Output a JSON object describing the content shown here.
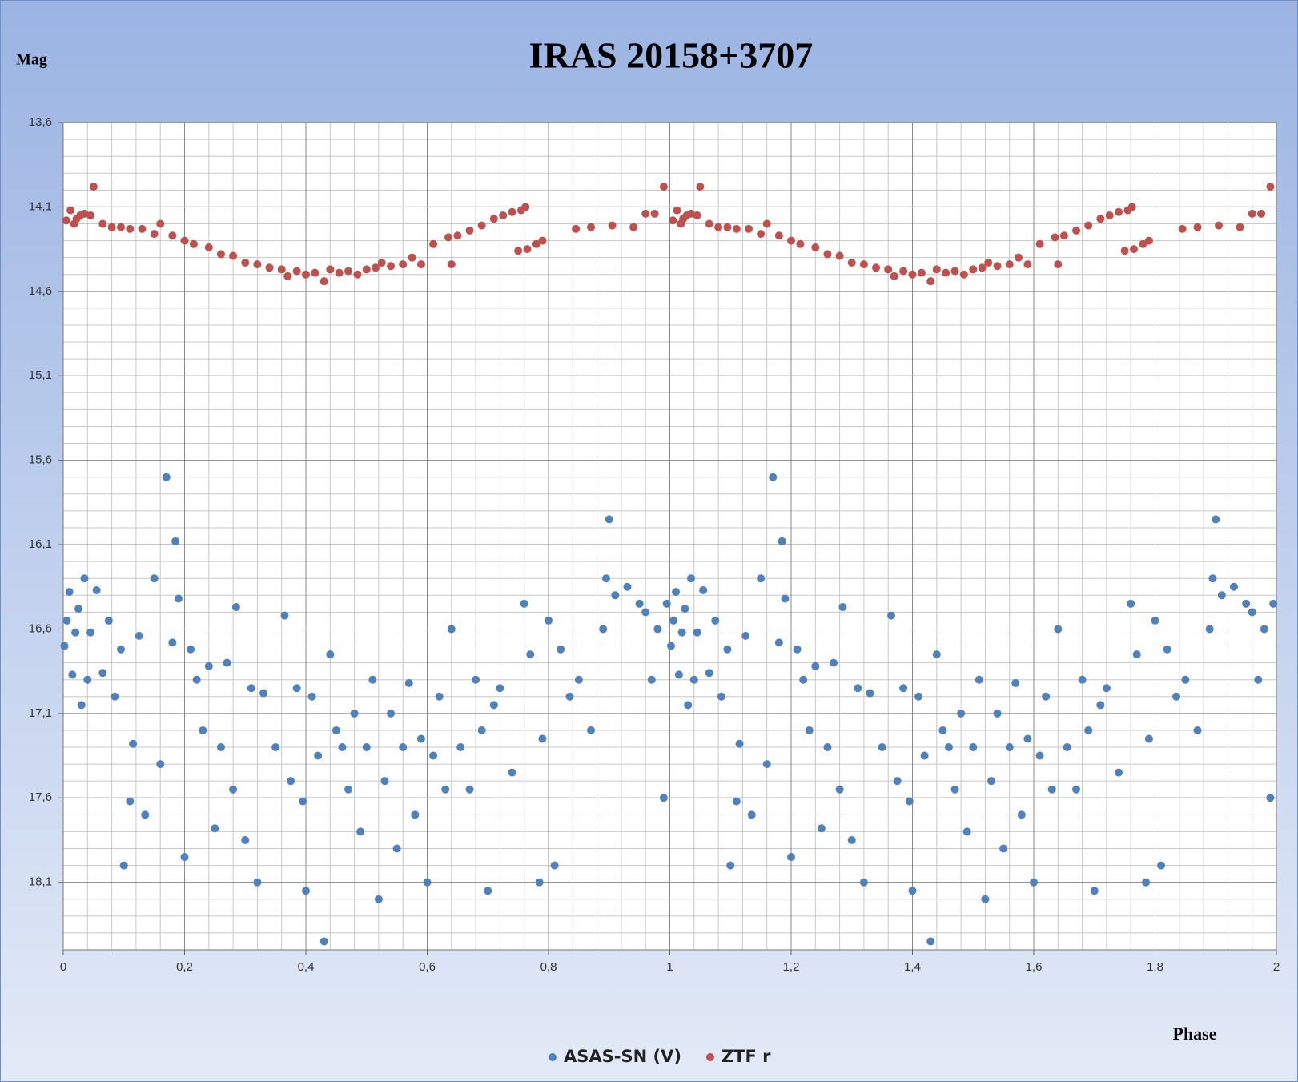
{
  "chart_data": {
    "type": "scatter",
    "title": "IRAS 20158+3707",
    "ylabel": "Mag",
    "xlabel": "Phase",
    "xlim": [
      0,
      2
    ],
    "xticks": [
      0,
      {
        "value": 0.2,
        "label": "0,2"
      },
      {
        "value": 0.4,
        "label": "0,4"
      },
      {
        "value": 0.6,
        "label": "0,6"
      },
      {
        "value": 0.8,
        "label": "0,8"
      },
      1,
      {
        "value": 1.2,
        "label": "1,2"
      },
      {
        "value": 1.4,
        "label": "1,4"
      },
      {
        "value": 1.6,
        "label": "1,6"
      },
      {
        "value": 1.8,
        "label": "1,8"
      },
      2
    ],
    "ylim": [
      13.6,
      18.5
    ],
    "y_reversed": true,
    "yticks": [
      {
        "value": 13.6,
        "label": "13,6"
      },
      {
        "value": 14.1,
        "label": "14,1"
      },
      {
        "value": 14.6,
        "label": "14,6"
      },
      {
        "value": 15.1,
        "label": "15,1"
      },
      {
        "value": 15.6,
        "label": "15,6"
      },
      {
        "value": 16.1,
        "label": "16,1"
      },
      {
        "value": 16.6,
        "label": "16,6"
      },
      {
        "value": 17.1,
        "label": "17,1"
      },
      {
        "value": 17.6,
        "label": "17,6"
      },
      {
        "value": 18.1,
        "label": "18,1"
      }
    ],
    "grid": true,
    "legend": "bottom",
    "series": [
      {
        "name": "ASAS-SN (V)",
        "color": "#4f81bd",
        "x": [
          0.002,
          0.006,
          0.01,
          0.015,
          0.02,
          0.025,
          0.03,
          0.035,
          0.04,
          0.045,
          0.055,
          0.065,
          0.075,
          0.085,
          0.095,
          0.1,
          0.11,
          0.115,
          0.125,
          0.135,
          0.15,
          0.16,
          0.17,
          0.18,
          0.185,
          0.19,
          0.2,
          0.21,
          0.22,
          0.23,
          0.24,
          0.25,
          0.26,
          0.27,
          0.28,
          0.285,
          0.3,
          0.31,
          0.32,
          0.33,
          0.35,
          0.365,
          0.375,
          0.385,
          0.395,
          0.4,
          0.41,
          0.42,
          0.43,
          0.44,
          0.45,
          0.46,
          0.47,
          0.48,
          0.49,
          0.5,
          0.51,
          0.52,
          0.53,
          0.54,
          0.55,
          0.56,
          0.57,
          0.58,
          0.59,
          0.6,
          0.61,
          0.62,
          0.63,
          0.64,
          0.655,
          0.67,
          0.68,
          0.69,
          0.7,
          0.71,
          0.72,
          0.74,
          0.76,
          0.77,
          0.785,
          0.79,
          0.8,
          0.81,
          0.82,
          0.835,
          0.85,
          0.87,
          0.89,
          0.895,
          0.9,
          0.91,
          0.93,
          0.95,
          0.96,
          0.97,
          0.98,
          0.99,
          0.995,
          1.002,
          1.006,
          1.01,
          1.015,
          1.02,
          1.025,
          1.03,
          1.035,
          1.04,
          1.045,
          1.055,
          1.065,
          1.075,
          1.085,
          1.095,
          1.1,
          1.11,
          1.115,
          1.125,
          1.135,
          1.15,
          1.16,
          1.17,
          1.18,
          1.185,
          1.19,
          1.2,
          1.21,
          1.22,
          1.23,
          1.24,
          1.25,
          1.26,
          1.27,
          1.28,
          1.285,
          1.3,
          1.31,
          1.32,
          1.33,
          1.35,
          1.365,
          1.375,
          1.385,
          1.395,
          1.4,
          1.41,
          1.42,
          1.43,
          1.44,
          1.45,
          1.46,
          1.47,
          1.48,
          1.49,
          1.5,
          1.51,
          1.52,
          1.53,
          1.54,
          1.55,
          1.56,
          1.57,
          1.58,
          1.59,
          1.6,
          1.61,
          1.62,
          1.63,
          1.64,
          1.655,
          1.67,
          1.68,
          1.69,
          1.7,
          1.71,
          1.72,
          1.74,
          1.76,
          1.77,
          1.785,
          1.79,
          1.8,
          1.81,
          1.82,
          1.835,
          1.85,
          1.87,
          1.89,
          1.895,
          1.9,
          1.91,
          1.93,
          1.95,
          1.96,
          1.97,
          1.98,
          1.99,
          1.995
        ],
        "values": [
          16.7,
          16.55,
          16.38,
          16.87,
          16.62,
          16.48,
          17.05,
          16.3,
          16.9,
          16.62,
          16.37,
          16.86,
          16.55,
          17.0,
          16.72,
          18.0,
          17.62,
          17.28,
          16.64,
          17.7,
          16.3,
          17.4,
          15.7,
          16.68,
          16.08,
          16.42,
          17.95,
          16.72,
          16.9,
          17.2,
          16.82,
          17.78,
          17.3,
          16.8,
          17.55,
          16.47,
          17.85,
          16.95,
          18.1,
          16.98,
          17.3,
          16.52,
          17.5,
          16.95,
          17.62,
          18.15,
          17.0,
          17.35,
          18.45,
          16.75,
          17.2,
          17.3,
          17.55,
          17.1,
          17.8,
          17.3,
          16.9,
          18.2,
          17.5,
          17.1,
          17.9,
          17.3,
          16.92,
          17.7,
          17.25,
          18.1,
          17.35,
          17.0,
          17.55,
          16.6,
          17.3,
          17.55,
          16.9,
          17.2,
          18.15,
          17.05,
          16.95,
          17.45,
          16.45,
          16.75,
          18.1,
          17.25,
          16.55,
          18.0,
          16.72,
          17.0,
          16.9,
          17.2,
          16.6,
          16.3,
          15.95,
          16.4,
          16.35,
          16.45,
          16.5,
          16.9,
          16.6,
          17.6,
          16.45,
          16.7,
          16.55,
          16.38,
          16.87,
          16.62,
          16.48,
          17.05,
          16.3,
          16.9,
          16.62,
          16.37,
          16.86,
          16.55,
          17.0,
          16.72,
          18.0,
          17.62,
          17.28,
          16.64,
          17.7,
          16.3,
          17.4,
          15.7,
          16.68,
          16.08,
          16.42,
          17.95,
          16.72,
          16.9,
          17.2,
          16.82,
          17.78,
          17.3,
          16.8,
          17.55,
          16.47,
          17.85,
          16.95,
          18.1,
          16.98,
          17.3,
          16.52,
          17.5,
          16.95,
          17.62,
          18.15,
          17.0,
          17.35,
          18.45,
          16.75,
          17.2,
          17.3,
          17.55,
          17.1,
          17.8,
          17.3,
          16.9,
          18.2,
          17.5,
          17.1,
          17.9,
          17.3,
          16.92,
          17.7,
          17.25,
          18.1,
          17.35,
          17.0,
          17.55,
          16.6,
          17.3,
          17.55,
          16.9,
          17.2,
          18.15,
          17.05,
          16.95,
          17.45,
          16.45,
          16.75,
          18.1,
          17.25,
          16.55,
          18.0,
          16.72,
          17.0,
          16.9,
          17.2,
          16.6,
          16.3,
          15.95,
          16.4,
          16.35,
          16.45,
          16.5,
          16.9,
          16.6,
          17.6,
          16.45
        ]
      },
      {
        "name": "ZTF r",
        "color": "#c0504d",
        "x": [
          0.005,
          0.012,
          0.018,
          0.022,
          0.028,
          0.035,
          0.045,
          0.05,
          0.065,
          0.08,
          0.095,
          0.11,
          0.13,
          0.15,
          0.16,
          0.18,
          0.2,
          0.215,
          0.24,
          0.26,
          0.28,
          0.3,
          0.32,
          0.34,
          0.36,
          0.37,
          0.385,
          0.4,
          0.415,
          0.43,
          0.44,
          0.455,
          0.47,
          0.485,
          0.5,
          0.515,
          0.525,
          0.54,
          0.56,
          0.575,
          0.59,
          0.61,
          0.635,
          0.64,
          0.65,
          0.67,
          0.69,
          0.71,
          0.725,
          0.74,
          0.755,
          0.762,
          0.75,
          0.765,
          0.78,
          0.79,
          0.845,
          0.87,
          0.905,
          0.94,
          0.96,
          0.975,
          0.99,
          1.005,
          1.012,
          1.018,
          1.022,
          1.028,
          1.035,
          1.045,
          1.05,
          1.065,
          1.08,
          1.095,
          1.11,
          1.13,
          1.15,
          1.16,
          1.18,
          1.2,
          1.215,
          1.24,
          1.26,
          1.28,
          1.3,
          1.32,
          1.34,
          1.36,
          1.37,
          1.385,
          1.4,
          1.415,
          1.43,
          1.44,
          1.455,
          1.47,
          1.485,
          1.5,
          1.515,
          1.525,
          1.54,
          1.56,
          1.575,
          1.59,
          1.61,
          1.635,
          1.64,
          1.65,
          1.67,
          1.69,
          1.71,
          1.725,
          1.74,
          1.755,
          1.762,
          1.75,
          1.765,
          1.78,
          1.79,
          1.845,
          1.87,
          1.905,
          1.94,
          1.96,
          1.975,
          1.99
        ],
        "values": [
          14.18,
          14.12,
          14.2,
          14.17,
          14.15,
          14.14,
          14.15,
          13.98,
          14.2,
          14.22,
          14.22,
          14.23,
          14.23,
          14.26,
          14.2,
          14.27,
          14.3,
          14.32,
          14.34,
          14.38,
          14.39,
          14.43,
          14.44,
          14.46,
          14.47,
          14.51,
          14.48,
          14.5,
          14.49,
          14.54,
          14.47,
          14.49,
          14.48,
          14.5,
          14.47,
          14.46,
          14.43,
          14.45,
          14.44,
          14.4,
          14.44,
          14.32,
          14.28,
          14.44,
          14.27,
          14.24,
          14.21,
          14.17,
          14.15,
          14.13,
          14.12,
          14.1,
          14.36,
          14.35,
          14.32,
          14.3,
          14.23,
          14.22,
          14.21,
          14.22,
          14.14,
          14.14,
          13.98,
          14.18,
          14.12,
          14.2,
          14.17,
          14.15,
          14.14,
          14.15,
          13.98,
          14.2,
          14.22,
          14.22,
          14.23,
          14.23,
          14.26,
          14.2,
          14.27,
          14.3,
          14.32,
          14.34,
          14.38,
          14.39,
          14.43,
          14.44,
          14.46,
          14.47,
          14.51,
          14.48,
          14.5,
          14.49,
          14.54,
          14.47,
          14.49,
          14.48,
          14.5,
          14.47,
          14.46,
          14.43,
          14.45,
          14.44,
          14.4,
          14.44,
          14.32,
          14.28,
          14.44,
          14.27,
          14.24,
          14.21,
          14.17,
          14.15,
          14.13,
          14.12,
          14.1,
          14.36,
          14.35,
          14.32,
          14.3,
          14.23,
          14.22,
          14.21,
          14.22,
          14.14,
          14.14,
          13.98
        ]
      }
    ]
  }
}
